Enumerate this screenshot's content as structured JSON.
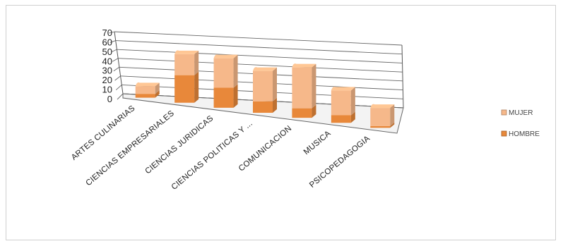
{
  "chart_data": {
    "type": "bar",
    "title": "",
    "xlabel": "",
    "ylabel": "",
    "ylim": [
      0,
      70
    ],
    "yticks": [
      0,
      10,
      20,
      30,
      40,
      50,
      60,
      70
    ],
    "categories": [
      "ARTES CULINARIAS",
      "CIENCIAS EMPRESARIALES",
      "CIENCIAS JURIDICAS",
      "CIENCIAS POLITICAS Y ...",
      "COMUNICACION",
      "MUSICA",
      "PSICOPEDAGOGIA"
    ],
    "series": [
      {
        "name": "HOMBRE",
        "values": [
          4,
          29,
          21,
          12,
          10,
          8,
          2
        ],
        "color": "#e8883a"
      },
      {
        "name": "MUJER",
        "values": [
          8,
          22,
          31,
          32,
          43,
          26,
          19
        ],
        "color": "#f6b88a"
      }
    ],
    "stacked": true,
    "three_d": true,
    "grid": true,
    "legend_position": "right"
  }
}
